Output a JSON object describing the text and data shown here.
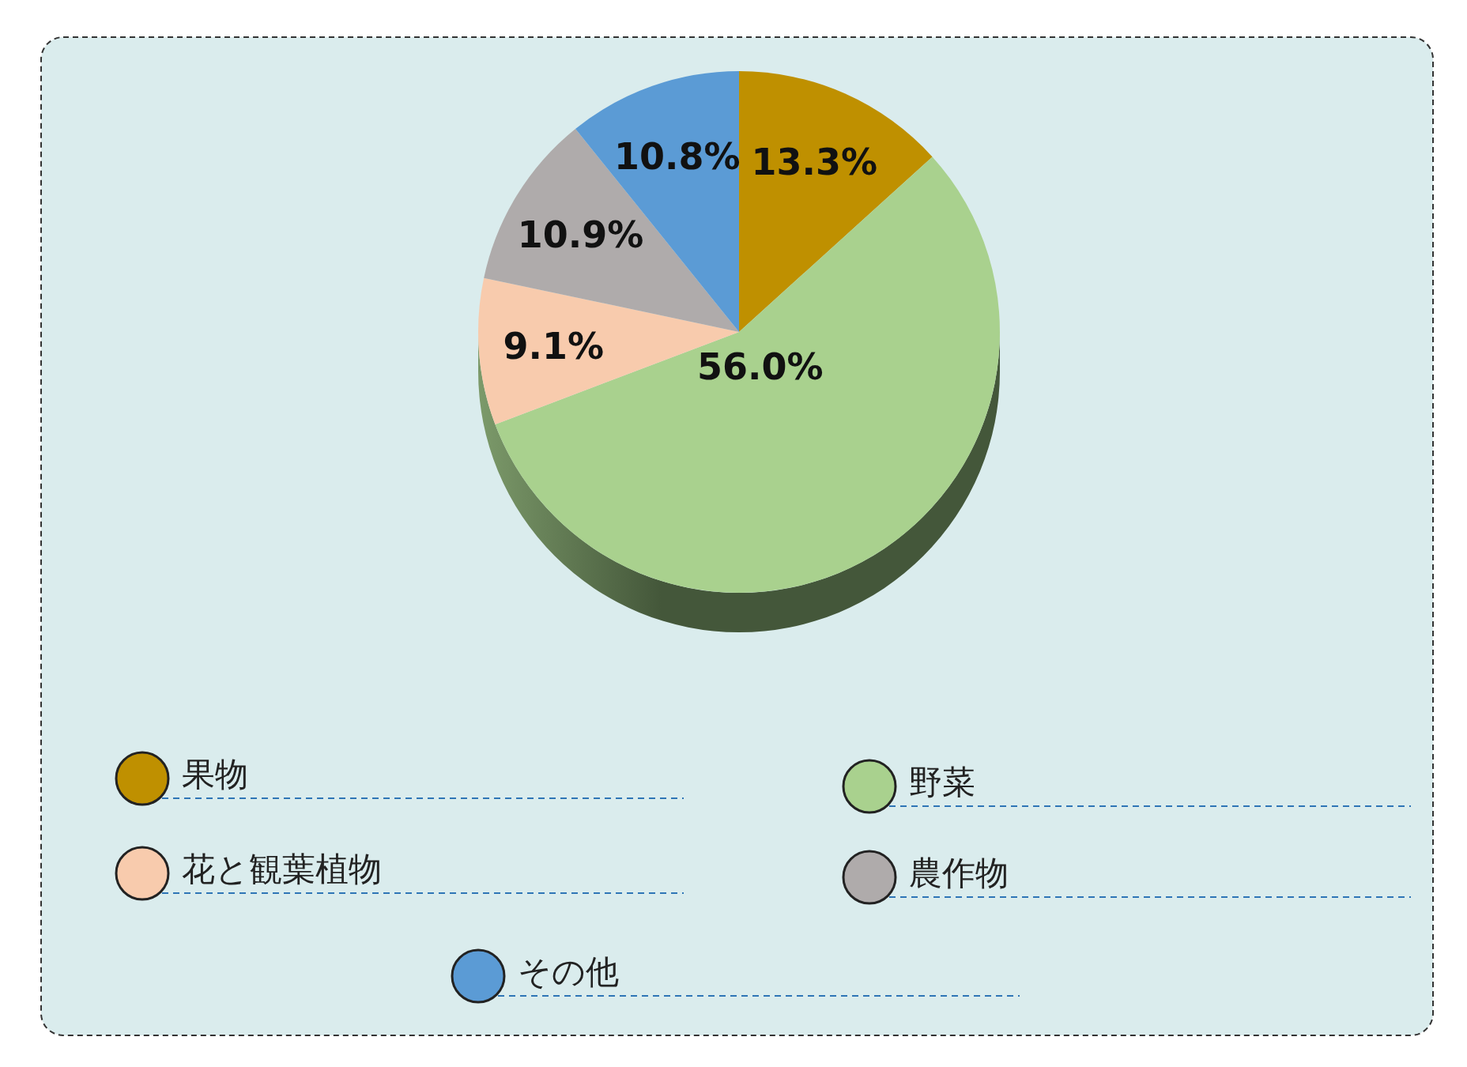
{
  "chart_data": {
    "type": "pie",
    "categories": [
      "果物",
      "野菜",
      "花と観葉植物",
      "農作物",
      "その他"
    ],
    "values": [
      13.3,
      56.0,
      9.1,
      10.9,
      10.8
    ],
    "colors": [
      "#bf9000",
      "#a9d18e",
      "#f8cbad",
      "#afabab",
      "#5b9bd5"
    ],
    "value_labels": [
      "13.3%",
      "56.0%",
      "9.1%",
      "10.9%",
      "10.8%"
    ],
    "legend": "bottom"
  }
}
